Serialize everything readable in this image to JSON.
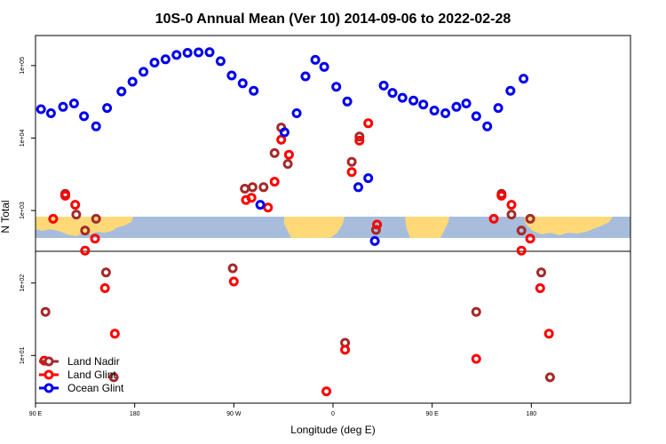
{
  "chart_data": {
    "type": "scatter",
    "title": "10S-0 Annual Mean (Ver 10)   2014-09-06 to 2022-02-28",
    "xlabel": "Longitude (deg E)",
    "ylabel": "N Total",
    "x_scale": "continuous longitude, 90 E wrapping to 180 E (540 deg span)",
    "y_scale": "log",
    "xlim": [
      90,
      630
    ],
    "ylim": [
      2.2,
      260000
    ],
    "x_ticks": [
      {
        "value": 90,
        "label": "90 E"
      },
      {
        "value": 180,
        "label": "180"
      },
      {
        "value": 270,
        "label": "90 W"
      },
      {
        "value": 360,
        "label": "0"
      },
      {
        "value": 450,
        "label": "90 E"
      },
      {
        "value": 540,
        "label": "180"
      }
    ],
    "y_ticks": [
      {
        "value": 10,
        "label": "1e+01"
      },
      {
        "value": 100,
        "label": "1e+02"
      },
      {
        "value": 1000,
        "label": "1e+03"
      },
      {
        "value": 10000,
        "label": "1e+04"
      },
      {
        "value": 100000,
        "label": "1e+05"
      }
    ],
    "legend_position": "bottom-left",
    "grid": false,
    "series": [
      {
        "name": "Land Nadir",
        "color": "#a52a2a",
        "points": [
          [
            99,
            40
          ],
          [
            117,
            1700
          ],
          [
            127,
            880
          ],
          [
            135,
            530
          ],
          [
            145,
            770
          ],
          [
            154,
            140
          ],
          [
            161,
            5
          ],
          [
            269,
            160
          ],
          [
            280,
            2000
          ],
          [
            287,
            2100
          ],
          [
            297,
            2100
          ],
          [
            307,
            6200
          ],
          [
            313,
            14000
          ],
          [
            319,
            4400
          ],
          [
            371,
            15
          ],
          [
            377,
            4700
          ],
          [
            384,
            10500
          ],
          [
            399,
            540
          ],
          [
            490,
            40
          ],
          [
            513,
            1700
          ],
          [
            522,
            880
          ],
          [
            531,
            530
          ],
          [
            539,
            770
          ],
          [
            549,
            140
          ],
          [
            557,
            5
          ]
        ]
      },
      {
        "name": "Land Glint",
        "color": "#ff0000",
        "points": [
          [
            98,
            8.5
          ],
          [
            106,
            770
          ],
          [
            117,
            1600
          ],
          [
            126,
            1200
          ],
          [
            135,
            280
          ],
          [
            144,
            410
          ],
          [
            153,
            85
          ],
          [
            162,
            20
          ],
          [
            270,
            105
          ],
          [
            281,
            1400
          ],
          [
            286,
            1500
          ],
          [
            301,
            1100
          ],
          [
            307,
            2500
          ],
          [
            313,
            9500
          ],
          [
            320,
            5900
          ],
          [
            354,
            3.2
          ],
          [
            371,
            12
          ],
          [
            377,
            3400
          ],
          [
            384,
            9200
          ],
          [
            392,
            16000
          ],
          [
            400,
            640
          ],
          [
            490,
            9
          ],
          [
            506,
            770
          ],
          [
            513,
            1600
          ],
          [
            522,
            1200
          ],
          [
            531,
            280
          ],
          [
            539,
            410
          ],
          [
            548,
            85
          ],
          [
            556,
            20
          ]
        ]
      },
      {
        "name": "Ocean Glint",
        "color": "#0000ee",
        "points": [
          [
            95,
            25000
          ],
          [
            104,
            22000
          ],
          [
            115,
            27000
          ],
          [
            125,
            30000
          ],
          [
            134,
            20000
          ],
          [
            145,
            14500
          ],
          [
            155,
            26000
          ],
          [
            168,
            44000
          ],
          [
            178,
            60000
          ],
          [
            188,
            82000
          ],
          [
            198,
            110000
          ],
          [
            208,
            122000
          ],
          [
            218,
            140000
          ],
          [
            228,
            150000
          ],
          [
            238,
            152000
          ],
          [
            248,
            153000
          ],
          [
            258,
            115000
          ],
          [
            268,
            73000
          ],
          [
            278,
            57000
          ],
          [
            288,
            45000
          ],
          [
            294,
            1200
          ],
          [
            327,
            22000
          ],
          [
            316,
            12000
          ],
          [
            335,
            71000
          ],
          [
            344,
            120000
          ],
          [
            352,
            96000
          ],
          [
            363,
            51000
          ],
          [
            373,
            32000
          ],
          [
            383,
            2100
          ],
          [
            392,
            2800
          ],
          [
            398,
            380
          ],
          [
            406,
            53000
          ],
          [
            414,
            42000
          ],
          [
            423,
            36000
          ],
          [
            433,
            33000
          ],
          [
            442,
            29000
          ],
          [
            452,
            24000
          ],
          [
            462,
            22000
          ],
          [
            472,
            27000
          ],
          [
            481,
            30000
          ],
          [
            490,
            20000
          ],
          [
            500,
            14500
          ],
          [
            510,
            26000
          ],
          [
            521,
            45000
          ],
          [
            533,
            66000
          ]
        ]
      }
    ]
  }
}
